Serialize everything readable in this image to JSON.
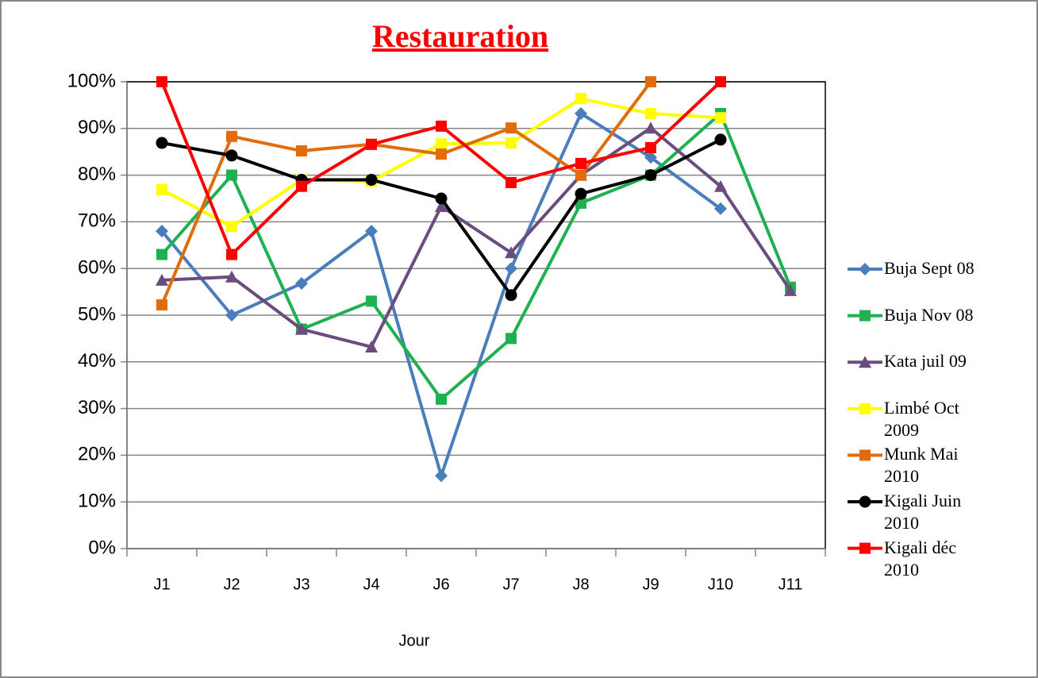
{
  "chart_data": {
    "type": "line",
    "title": "Restauration",
    "x_label": "Jour",
    "categories": [
      "J1",
      "J2",
      "J3",
      "J4",
      "J6",
      "J7",
      "J8",
      "J9",
      "J10",
      "J11"
    ],
    "ylim": [
      0,
      100
    ],
    "yticks": [
      {
        "value": 0,
        "label": "0%"
      },
      {
        "value": 10,
        "label": "10%"
      },
      {
        "value": 20,
        "label": "20%"
      },
      {
        "value": 30,
        "label": "30%"
      },
      {
        "value": 40,
        "label": "40%"
      },
      {
        "value": 50,
        "label": "50%"
      },
      {
        "value": 60,
        "label": "60%"
      },
      {
        "value": 70,
        "label": "70%"
      },
      {
        "value": 80,
        "label": "80%"
      },
      {
        "value": 90,
        "label": "90%"
      },
      {
        "value": 100,
        "label": "100%"
      }
    ],
    "grid": true,
    "legend": "right",
    "series": [
      {
        "name": "Buja Sept 08",
        "color": "#4a7ebb",
        "marker": "diamond",
        "values": [
          68,
          50,
          56.8,
          68,
          15.6,
          60,
          93.2,
          83.8,
          72.8,
          null
        ]
      },
      {
        "name": "Buja Nov 08",
        "color": "#1fb04f",
        "marker": "square",
        "values": [
          63,
          80,
          47,
          53,
          32,
          45,
          74,
          80,
          93.2,
          56
        ]
      },
      {
        "name": "Kata juil 09",
        "color": "#6a4c7e",
        "marker": "triangle",
        "values": [
          57.5,
          58.2,
          47,
          43.2,
          73.3,
          63.4,
          80,
          90.1,
          77.6,
          55.3
        ]
      },
      {
        "name": "Limbé Oct 2009",
        "color": "#ffff00",
        "marker": "square",
        "values": [
          76.9,
          69,
          79,
          78.7,
          86.7,
          86.9,
          96.4,
          93.2,
          92.3,
          null
        ]
      },
      {
        "name": "Munk Mai 2010",
        "color": "#e36c0a",
        "marker": "square",
        "values": [
          52.2,
          88.3,
          85.2,
          86.6,
          84.5,
          90.1,
          80,
          100,
          null,
          null
        ]
      },
      {
        "name": "Kigali Juin 2010",
        "color": "#000000",
        "marker": "circle",
        "values": [
          86.9,
          84.2,
          79,
          79,
          75,
          54.3,
          76,
          80,
          87.6,
          null
        ]
      },
      {
        "name": "Kigali déc 2010",
        "color": "#ff0000",
        "marker": "square",
        "values": [
          100,
          63,
          77.6,
          86.6,
          90.5,
          78.4,
          82.5,
          85.9,
          100,
          null
        ]
      }
    ]
  }
}
